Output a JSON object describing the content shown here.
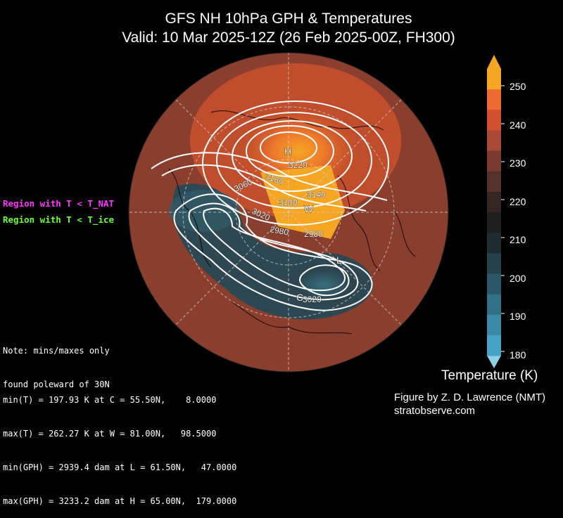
{
  "title": {
    "line1": "GFS NH 10hPa GPH & Temperatures",
    "line2": "Valid: 10 Mar 2025-12Z  (26 Feb 2025-00Z, FH300)"
  },
  "legend": {
    "nat": "Region with T < T_NAT",
    "ice": "Region with T < T_ice"
  },
  "note": {
    "line1": "Note: mins/maxes only",
    "line2": "found poleward of 30N"
  },
  "stats": {
    "min_t": "min(T) = 197.93 K at C = 55.50N,    8.0000",
    "max_t": "max(T) = 262.27 K at W = 81.00N,   98.5000",
    "min_gph": "min(GPH) = 2939.4 dam at L = 61.50N,   47.0000",
    "max_gph": "max(GPH) = 3233.2 dam at H = 65.00N,  179.0000"
  },
  "markers": {
    "H": "H",
    "W": "W",
    "L": "L",
    "C": "C"
  },
  "contour_labels": [
    "3220",
    "3180",
    "3140",
    "3100",
    "3060",
    "3020",
    "2980",
    "2980",
    "3020"
  ],
  "colorbar": {
    "title": "Temperature (K)",
    "ticks": [
      "250",
      "240",
      "230",
      "220",
      "210",
      "200",
      "190",
      "180"
    ],
    "colors": [
      "#f5a623",
      "#ee6a30",
      "#d2502c",
      "#a84a35",
      "#7a3a30",
      "#553229",
      "#352624",
      "#1f1f1f",
      "#1f2b30",
      "#25414b",
      "#2b5868",
      "#327086",
      "#3989a6",
      "#45a4c6"
    ]
  },
  "credit": {
    "line1": "Figure by Z. D. Lawrence (NMT)",
    "line2": "stratobserve.com"
  }
}
